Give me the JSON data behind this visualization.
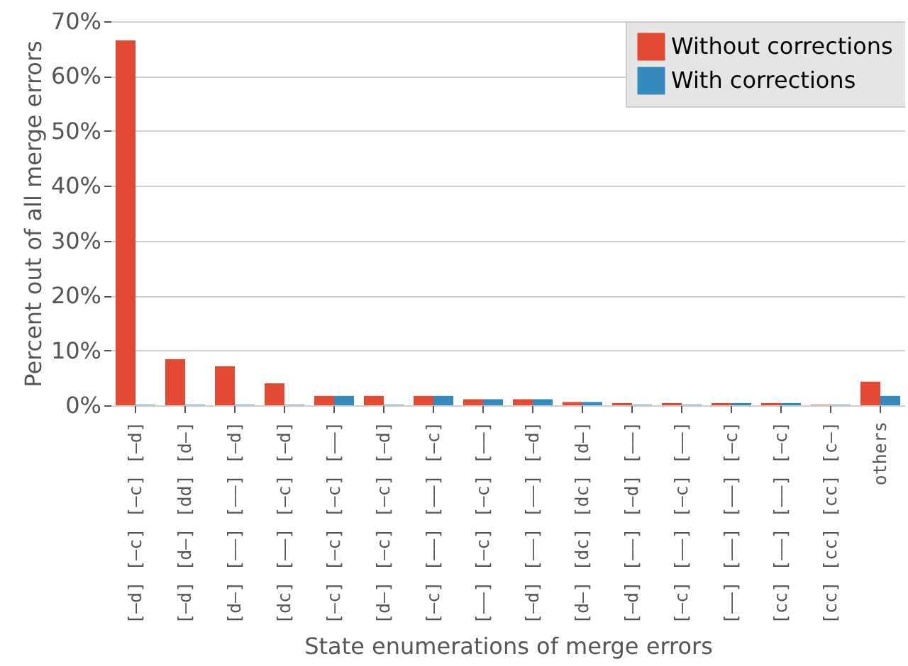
{
  "chart_data": {
    "type": "bar",
    "xlabel": "State enumerations of merge errors",
    "ylabel": "Percent out of all merge errors",
    "categories": [
      "[–d] [–c] [–c] [–d]",
      "[–d] [d–] [dd] [d–]",
      "[d–] [––] [––] [–d]",
      "[dc] [––] [–c] [–d]",
      "[–c] [–c] [–c] [––]",
      "[d–] [–c] [–c] [–d]",
      "[–c] [––] [––] [–c]",
      "[––] [–c] [–c] [––]",
      "[–d] [––] [––] [–d]",
      "[d–] [dc] [dc] [d–]",
      "[–d] [––] [–d] [––]",
      "[–c] [––] [–c] [––]",
      "[––] [––] [––] [–c]",
      "[cc] [––] [––] [–c]",
      "[cc] [cc] [cc] [c–]",
      "others"
    ],
    "series": [
      {
        "name": "Without corrections",
        "color": "#e24a33",
        "values": [
          66.5,
          8.4,
          7.1,
          4.0,
          1.7,
          1.7,
          1.7,
          1.1,
          1.1,
          0.6,
          0.4,
          0.4,
          0.4,
          0.4,
          0.1,
          4.3
        ]
      },
      {
        "name": "With corrections",
        "color": "#348abd",
        "values": [
          0.1,
          0.1,
          0.1,
          0.1,
          1.7,
          0.1,
          1.7,
          1.1,
          1.1,
          0.6,
          0.1,
          0.1,
          0.4,
          0.4,
          0.1,
          1.7
        ]
      }
    ],
    "ylim": [
      0,
      70
    ],
    "yticks": [
      {
        "value": 0,
        "label": "0%"
      },
      {
        "value": 10,
        "label": "10%"
      },
      {
        "value": 20,
        "label": "20%"
      },
      {
        "value": 30,
        "label": "30%"
      },
      {
        "value": 40,
        "label": "40%"
      },
      {
        "value": 50,
        "label": "50%"
      },
      {
        "value": 60,
        "label": "60%"
      },
      {
        "value": 70,
        "label": "70%"
      }
    ],
    "grid": "y",
    "legend": "top right"
  }
}
